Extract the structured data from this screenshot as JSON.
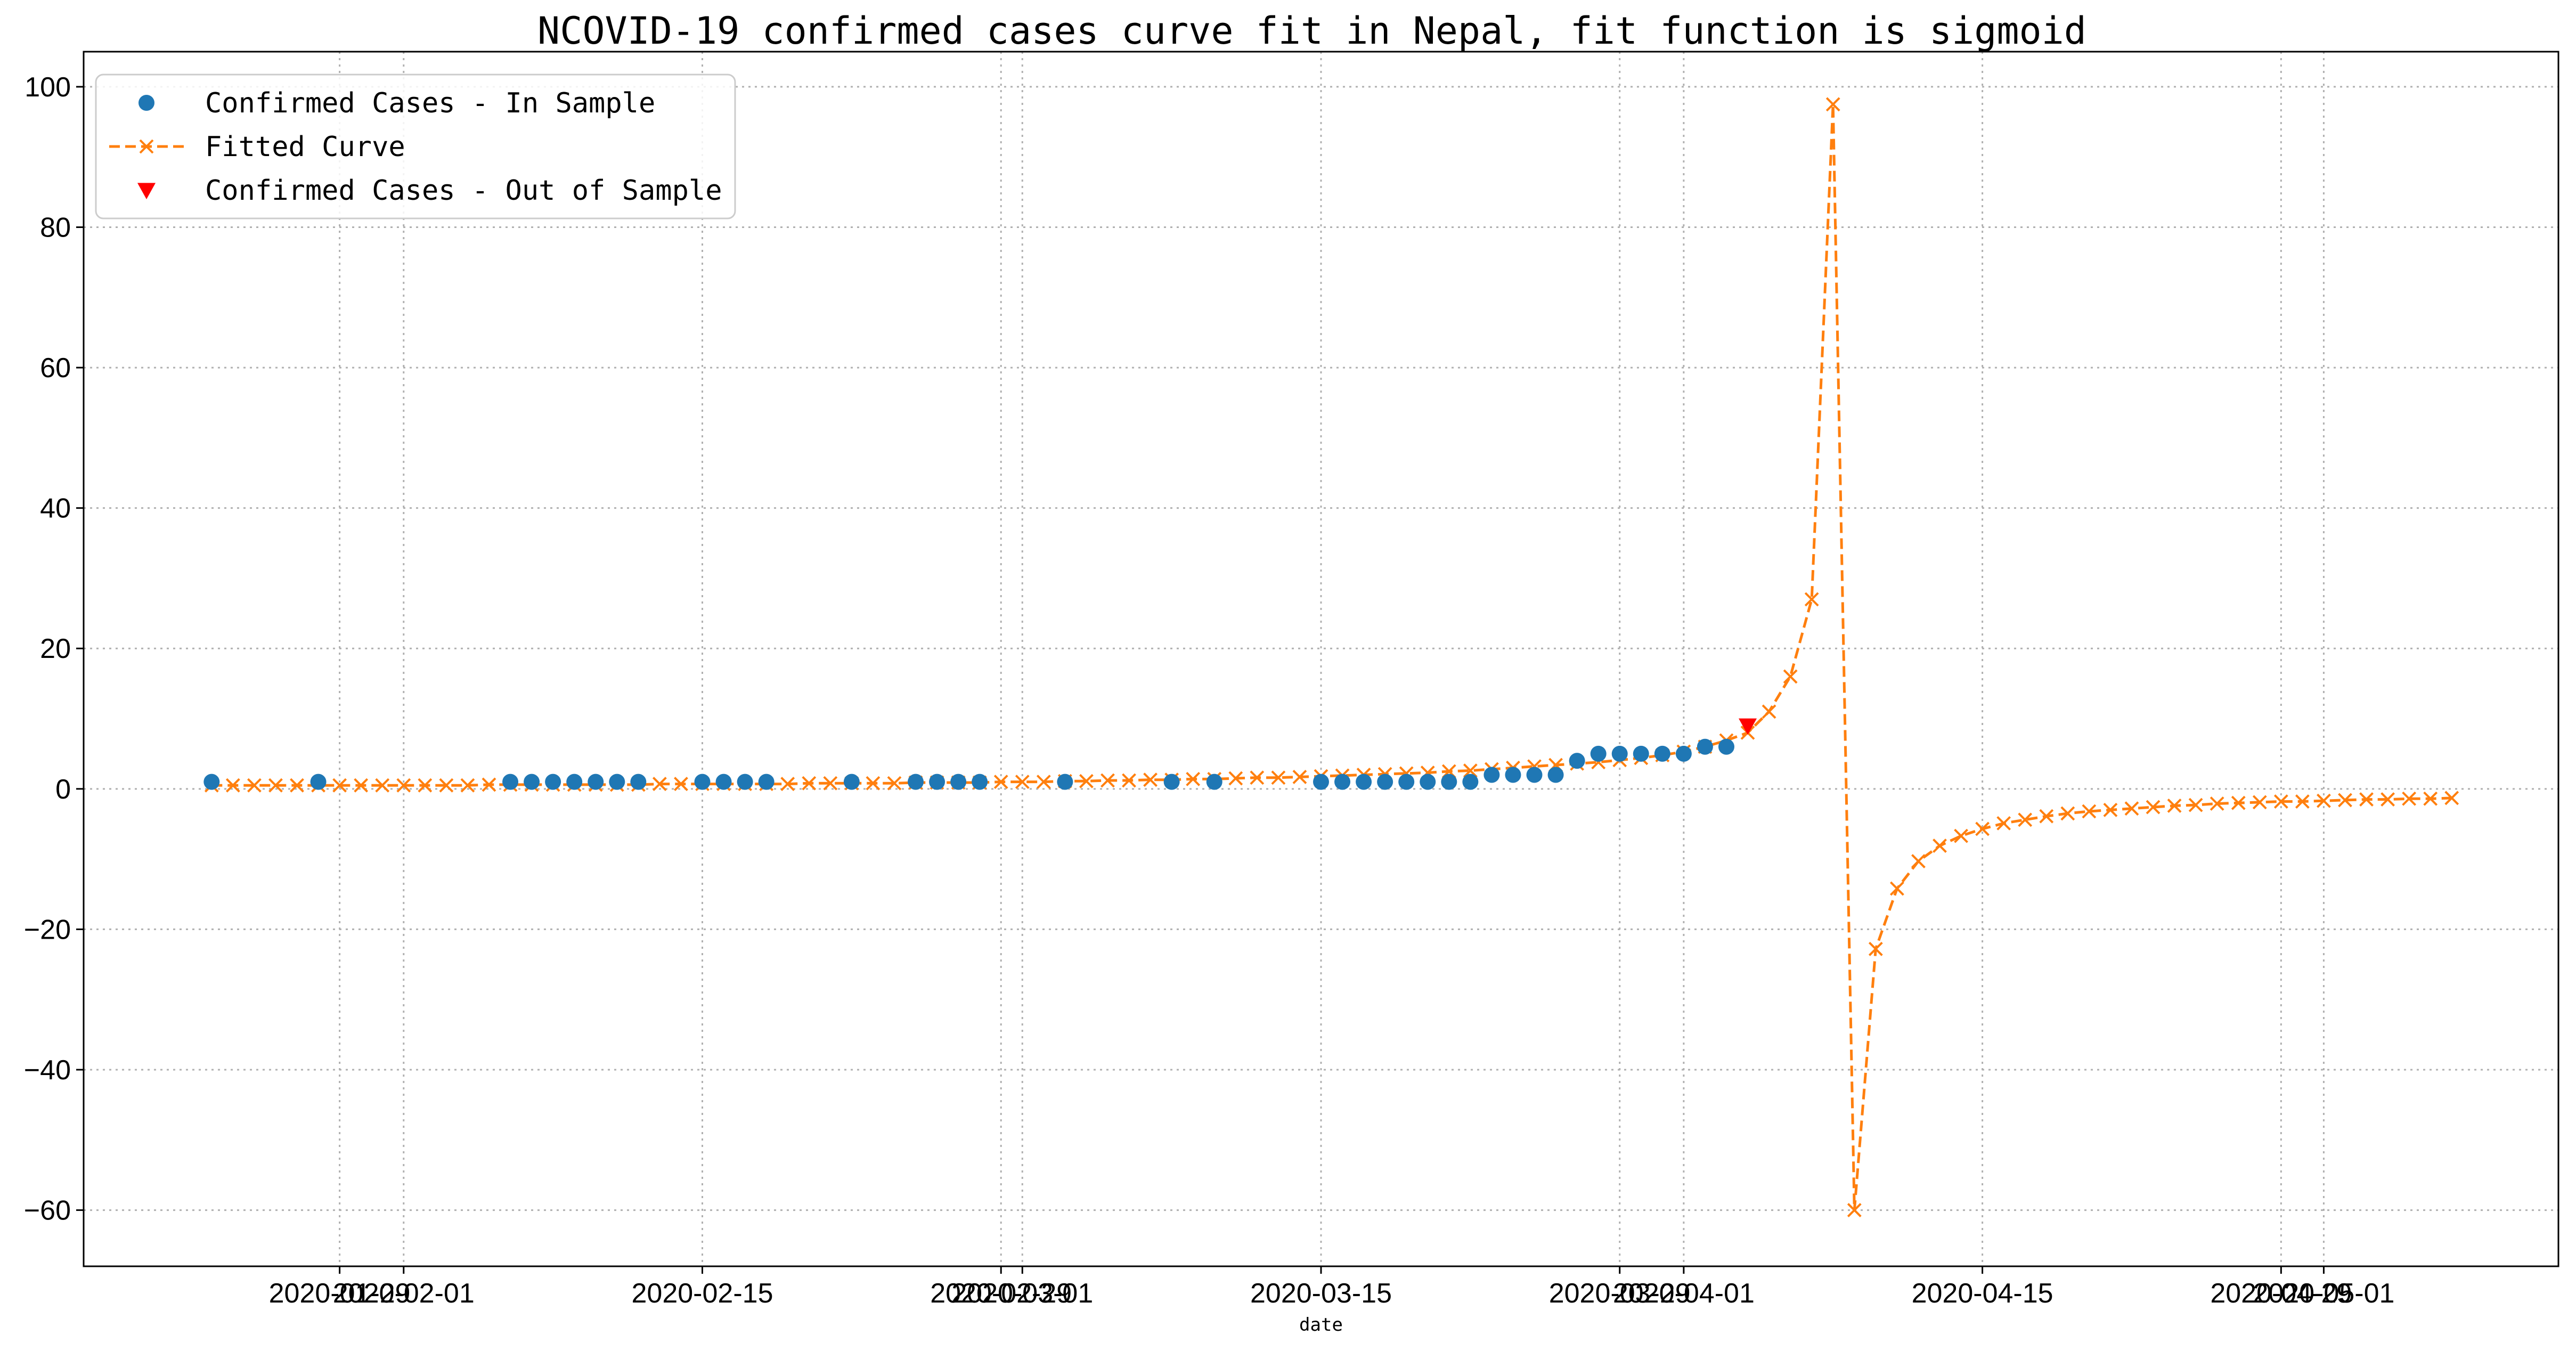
{
  "chart_data": {
    "type": "scatter",
    "title": "NCOVID-19 confirmed cases curve fit in Nepal, fit function is sigmoid",
    "xlabel": "date",
    "ylabel": "",
    "x_axis": {
      "start_date": "2020-01-23",
      "range": [
        "2020-01-17",
        "2020-05-12"
      ],
      "tick_labels": [
        {
          "date": "2020-01-29",
          "label": "2020-01-29"
        },
        {
          "date": "2020-02-01",
          "label": "2020-02-01"
        },
        {
          "date": "2020-02-15",
          "label": "2020-02-15"
        },
        {
          "date": "2020-02-29",
          "label": "2020-02-29"
        },
        {
          "date": "2020-03-01",
          "label": "2020-03-01"
        },
        {
          "date": "2020-03-15",
          "label": "2020-03-15"
        },
        {
          "date": "2020-03-29",
          "label": "2020-03-29"
        },
        {
          "date": "2020-04-01",
          "label": "2020-04-01"
        },
        {
          "date": "2020-04-15",
          "label": "2020-04-15"
        },
        {
          "date": "2020-04-29",
          "label": "2020-04-29"
        },
        {
          "date": "2020-05-01",
          "label": "2020-05-01"
        }
      ]
    },
    "ylim": [
      -68,
      105
    ],
    "y_ticks": [
      -60,
      -40,
      -20,
      0,
      20,
      40,
      60,
      80,
      100
    ],
    "grid": true,
    "legend_position": "top-left",
    "series": [
      {
        "name": "Confirmed Cases - In Sample",
        "marker": "circle",
        "color": "#1f77b4",
        "points": [
          [
            "2020-01-23",
            1
          ],
          [
            "2020-01-28",
            1
          ],
          [
            "2020-02-06",
            1
          ],
          [
            "2020-02-07",
            1
          ],
          [
            "2020-02-08",
            1
          ],
          [
            "2020-02-09",
            1
          ],
          [
            "2020-02-10",
            1
          ],
          [
            "2020-02-11",
            1
          ],
          [
            "2020-02-12",
            1
          ],
          [
            "2020-02-15",
            1
          ],
          [
            "2020-02-16",
            1
          ],
          [
            "2020-02-17",
            1
          ],
          [
            "2020-02-18",
            1
          ],
          [
            "2020-02-22",
            1
          ],
          [
            "2020-02-25",
            1
          ],
          [
            "2020-02-26",
            1
          ],
          [
            "2020-02-27",
            1
          ],
          [
            "2020-02-28",
            1
          ],
          [
            "2020-03-03",
            1
          ],
          [
            "2020-03-08",
            1
          ],
          [
            "2020-03-10",
            1
          ],
          [
            "2020-03-15",
            1
          ],
          [
            "2020-03-16",
            1
          ],
          [
            "2020-03-17",
            1
          ],
          [
            "2020-03-18",
            1
          ],
          [
            "2020-03-19",
            1
          ],
          [
            "2020-03-20",
            1
          ],
          [
            "2020-03-21",
            1
          ],
          [
            "2020-03-22",
            1
          ],
          [
            "2020-03-23",
            2
          ],
          [
            "2020-03-24",
            2
          ],
          [
            "2020-03-25",
            2
          ],
          [
            "2020-03-26",
            2
          ],
          [
            "2020-03-27",
            4
          ],
          [
            "2020-03-28",
            5
          ],
          [
            "2020-03-29",
            5
          ],
          [
            "2020-03-30",
            5
          ],
          [
            "2020-03-31",
            5
          ],
          [
            "2020-04-01",
            5
          ],
          [
            "2020-04-02",
            6
          ],
          [
            "2020-04-03",
            6
          ]
        ]
      },
      {
        "name": "Fitted Curve",
        "marker": "x",
        "line": "dashed",
        "color": "#ff7f0e",
        "points": [
          [
            "2020-01-23",
            0.5
          ],
          [
            "2020-01-24",
            0.5
          ],
          [
            "2020-01-25",
            0.5
          ],
          [
            "2020-01-26",
            0.5
          ],
          [
            "2020-01-27",
            0.5
          ],
          [
            "2020-01-28",
            0.5
          ],
          [
            "2020-01-29",
            0.5
          ],
          [
            "2020-01-30",
            0.5
          ],
          [
            "2020-01-31",
            0.5
          ],
          [
            "2020-02-01",
            0.5
          ],
          [
            "2020-02-02",
            0.5
          ],
          [
            "2020-02-03",
            0.5
          ],
          [
            "2020-02-04",
            0.5
          ],
          [
            "2020-02-05",
            0.6
          ],
          [
            "2020-02-06",
            0.6
          ],
          [
            "2020-02-07",
            0.6
          ],
          [
            "2020-02-08",
            0.6
          ],
          [
            "2020-02-09",
            0.6
          ],
          [
            "2020-02-10",
            0.6
          ],
          [
            "2020-02-11",
            0.6
          ],
          [
            "2020-02-12",
            0.6
          ],
          [
            "2020-02-13",
            0.7
          ],
          [
            "2020-02-14",
            0.7
          ],
          [
            "2020-02-15",
            0.7
          ],
          [
            "2020-02-16",
            0.7
          ],
          [
            "2020-02-17",
            0.7
          ],
          [
            "2020-02-18",
            0.7
          ],
          [
            "2020-02-19",
            0.7
          ],
          [
            "2020-02-20",
            0.8
          ],
          [
            "2020-02-21",
            0.8
          ],
          [
            "2020-02-22",
            0.8
          ],
          [
            "2020-02-23",
            0.8
          ],
          [
            "2020-02-24",
            0.8
          ],
          [
            "2020-02-25",
            0.9
          ],
          [
            "2020-02-26",
            0.9
          ],
          [
            "2020-02-27",
            0.9
          ],
          [
            "2020-02-28",
            0.9
          ],
          [
            "2020-02-29",
            1.0
          ],
          [
            "2020-03-01",
            1.0
          ],
          [
            "2020-03-02",
            1.0
          ],
          [
            "2020-03-03",
            1.1
          ],
          [
            "2020-03-04",
            1.1
          ],
          [
            "2020-03-05",
            1.2
          ],
          [
            "2020-03-06",
            1.2
          ],
          [
            "2020-03-07",
            1.3
          ],
          [
            "2020-03-08",
            1.3
          ],
          [
            "2020-03-09",
            1.4
          ],
          [
            "2020-03-10",
            1.4
          ],
          [
            "2020-03-11",
            1.5
          ],
          [
            "2020-03-12",
            1.6
          ],
          [
            "2020-03-13",
            1.6
          ],
          [
            "2020-03-14",
            1.7
          ],
          [
            "2020-03-15",
            1.8
          ],
          [
            "2020-03-16",
            1.9
          ],
          [
            "2020-03-17",
            2.0
          ],
          [
            "2020-03-18",
            2.1
          ],
          [
            "2020-03-19",
            2.2
          ],
          [
            "2020-03-20",
            2.3
          ],
          [
            "2020-03-21",
            2.5
          ],
          [
            "2020-03-22",
            2.6
          ],
          [
            "2020-03-23",
            2.8
          ],
          [
            "2020-03-24",
            3.0
          ],
          [
            "2020-03-25",
            3.2
          ],
          [
            "2020-03-26",
            3.4
          ],
          [
            "2020-03-27",
            3.6
          ],
          [
            "2020-03-28",
            3.8
          ],
          [
            "2020-03-29",
            4.1
          ],
          [
            "2020-03-30",
            4.4
          ],
          [
            "2020-03-31",
            4.8
          ],
          [
            "2020-04-01",
            5.3
          ],
          [
            "2020-04-02",
            6.0
          ],
          [
            "2020-04-03",
            6.9
          ],
          [
            "2020-04-04",
            8.0
          ],
          [
            "2020-04-05",
            11.0
          ],
          [
            "2020-04-06",
            16.0
          ],
          [
            "2020-04-07",
            27.0
          ],
          [
            "2020-04-08",
            97.5
          ],
          [
            "2020-04-09",
            -60.0
          ],
          [
            "2020-04-10",
            -22.8
          ],
          [
            "2020-04-11",
            -14.2
          ],
          [
            "2020-04-12",
            -10.3
          ],
          [
            "2020-04-13",
            -8.1
          ],
          [
            "2020-04-14",
            -6.7
          ],
          [
            "2020-04-15",
            -5.7
          ],
          [
            "2020-04-16",
            -4.9
          ],
          [
            "2020-04-17",
            -4.4
          ],
          [
            "2020-04-18",
            -3.9
          ],
          [
            "2020-04-19",
            -3.5
          ],
          [
            "2020-04-20",
            -3.2
          ],
          [
            "2020-04-21",
            -3.0
          ],
          [
            "2020-04-22",
            -2.8
          ],
          [
            "2020-04-23",
            -2.6
          ],
          [
            "2020-04-24",
            -2.4
          ],
          [
            "2020-04-25",
            -2.3
          ],
          [
            "2020-04-26",
            -2.1
          ],
          [
            "2020-04-27",
            -2.0
          ],
          [
            "2020-04-28",
            -1.9
          ],
          [
            "2020-04-29",
            -1.8
          ],
          [
            "2020-04-30",
            -1.8
          ],
          [
            "2020-05-01",
            -1.7
          ],
          [
            "2020-05-02",
            -1.6
          ],
          [
            "2020-05-03",
            -1.5
          ],
          [
            "2020-05-04",
            -1.5
          ],
          [
            "2020-05-05",
            -1.4
          ],
          [
            "2020-05-06",
            -1.4
          ],
          [
            "2020-05-07",
            -1.3
          ]
        ]
      },
      {
        "name": "Confirmed Cases - Out of Sample",
        "marker": "triangle-down",
        "color": "#ff0000",
        "points": [
          [
            "2020-04-04",
            9
          ]
        ]
      }
    ]
  }
}
